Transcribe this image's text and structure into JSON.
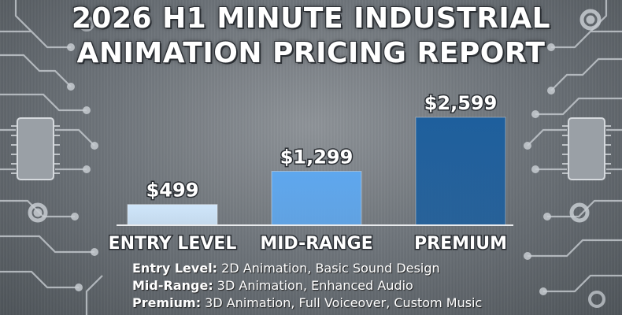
{
  "title_lines": [
    "2026 H1 MINUTE INDUSTRIAL",
    "ANIMATION PRICING REPORT"
  ],
  "chart_data": {
    "type": "bar",
    "title": "2026 H1 MINUTE INDUSTRIAL ANIMATION PRICING REPORT",
    "categories": [
      "ENTRY LEVEL",
      "MID-RANGE",
      "PREMIUM"
    ],
    "values": [
      499,
      1299,
      2599
    ],
    "value_labels": [
      "$499",
      "$1,299",
      "$2,599"
    ],
    "colors": [
      "#cfe6fb",
      "#5ea7ee",
      "#1e5f9d"
    ],
    "ylim": [
      0,
      2599
    ],
    "grid": false,
    "xlabel": "",
    "ylabel": ""
  },
  "notes": [
    {
      "label": "Entry Level:",
      "text": " 2D Animation, Basic Sound Design"
    },
    {
      "label": "Mid-Range:",
      "text": " 3D Animation, Enhanced Audio"
    },
    {
      "label": "Premium:",
      "text": " 3D Animation, Full Voiceover, Custom Music"
    }
  ]
}
